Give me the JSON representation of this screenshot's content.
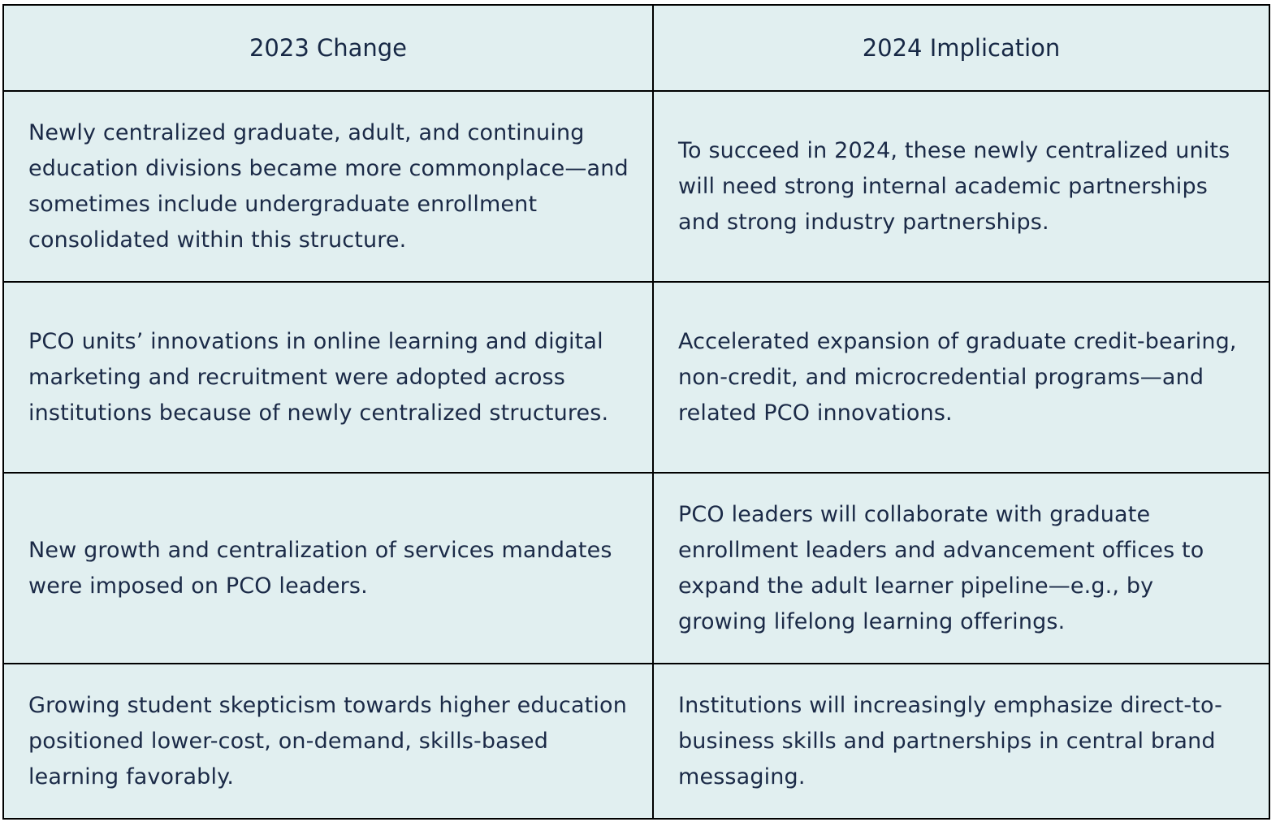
{
  "table": {
    "headers": [
      "2023 Change",
      "2024 Implication"
    ],
    "rows": [
      {
        "change": "Newly centralized graduate, adult, and continuing education divisions became more commonplace—and sometimes include undergraduate enrollment consolidated within this structure.",
        "implication": "To succeed in 2024, these newly centralized units will need strong internal academic partnerships and strong industry partnerships."
      },
      {
        "change": "PCO units’ innovations in online learning and digital marketing and recruitment were adopted across institutions because of newly centralized structures.",
        "implication": "Accelerated expansion of graduate credit-bearing, non-credit, and microcredential programs—and related PCO innovations."
      },
      {
        "change": "New growth and centralization of services mandates were imposed on PCO leaders.",
        "implication": "PCO leaders will collaborate with graduate enrollment leaders and advancement offices to expand the adult learner pipeline—e.g., by growing lifelong learning offerings."
      },
      {
        "change": "Growing student skepticism towards higher education positioned lower-cost, on-demand, skills-based learning favorably.",
        "implication": "Institutions will increasingly emphasize direct-to-business skills and partnerships in central brand messaging."
      }
    ]
  },
  "colors": {
    "cell_background": "#e1eff0",
    "text": "#1b2a47",
    "border": "#000000"
  }
}
